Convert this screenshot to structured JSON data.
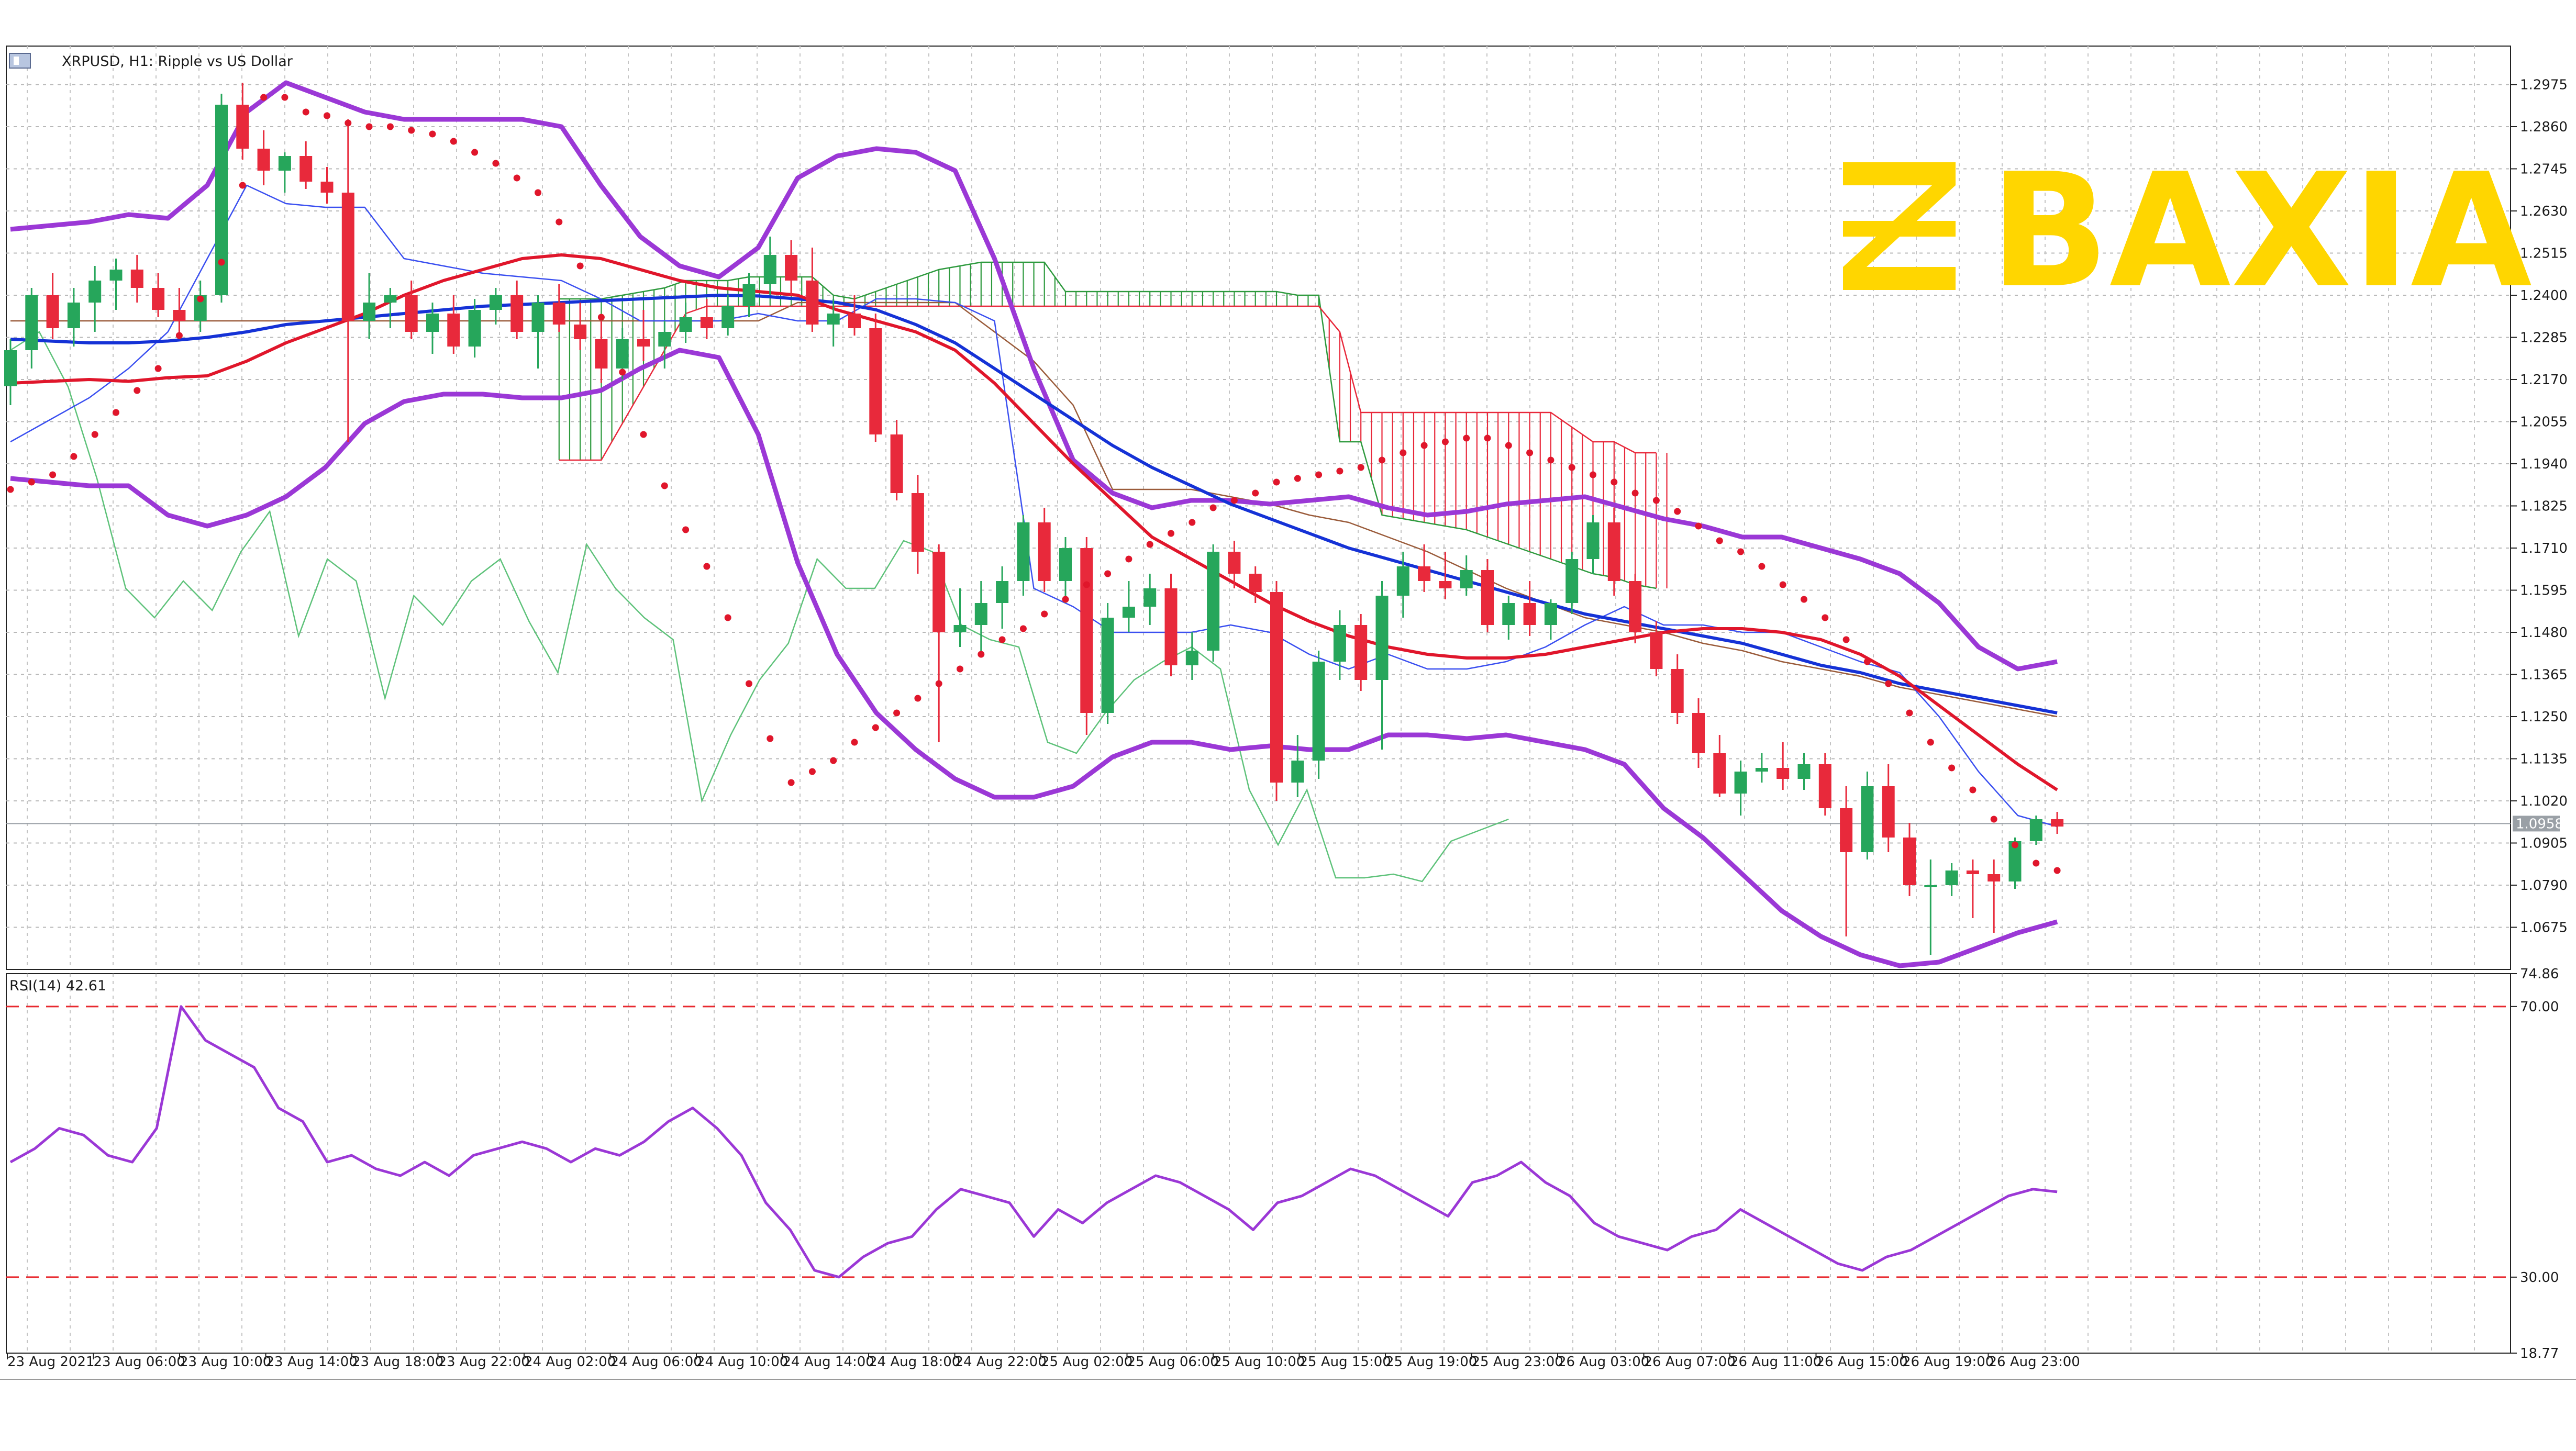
{
  "window": {
    "title": "XRPUSD, H1:  Ripple vs US Dollar"
  },
  "logo": {
    "text": "BAXIA",
    "color": "#ffd600"
  },
  "price_panel": {
    "y_ticks": [
      "1.2975",
      "1.2860",
      "1.2745",
      "1.2630",
      "1.2515",
      "1.2400",
      "1.2285",
      "1.2170",
      "1.2055",
      "1.1940",
      "1.1825",
      "1.1710",
      "1.1595",
      "1.1480",
      "1.1365",
      "1.1250",
      "1.1135",
      "1.1020",
      "1.0905",
      "1.0790",
      "1.0675"
    ],
    "ylim": [
      1.056,
      1.308
    ],
    "current_price": "1.0958"
  },
  "rsi_panel": {
    "title": "RSI(14) 42.61",
    "y_ticks": [
      "74.86",
      "70.00",
      "30.00",
      "18.77"
    ],
    "ylim": [
      18.77,
      74.86
    ],
    "levels": [
      70,
      30
    ],
    "level_color": "#e8292f"
  },
  "x_labels": [
    "23 Aug 2021",
    "23 Aug 06:00",
    "23 Aug 10:00",
    "23 Aug 14:00",
    "23 Aug 18:00",
    "23 Aug 22:00",
    "24 Aug 02:00",
    "24 Aug 06:00",
    "24 Aug 10:00",
    "24 Aug 14:00",
    "24 Aug 18:00",
    "24 Aug 22:00",
    "25 Aug 02:00",
    "25 Aug 06:00",
    "25 Aug 10:00",
    "25 Aug 15:00",
    "25 Aug 19:00",
    "25 Aug 23:00",
    "26 Aug 03:00",
    "26 Aug 07:00",
    "26 Aug 11:00",
    "26 Aug 15:00",
    "26 Aug 19:00",
    "26 Aug 23:00"
  ],
  "colors": {
    "bull": "#26a65b",
    "bear": "#e8293b",
    "bollinger": "#9b38d6",
    "ma_fast": "#e0162b",
    "ma_slow": "#1532d6",
    "sar": "#e0162b",
    "kijun": "#9a5b3a",
    "tenkan": "#3a4ff0",
    "chikou": "#5ec27a",
    "cloud_bear": "#e8293b",
    "cloud_bull": "#2e9a3e",
    "rsi": "#9b38d6"
  },
  "chart_data": {
    "type": "candlestick",
    "symbol": "XRPUSD",
    "timeframe": "H1",
    "candles": [
      [
        1.2152,
        1.228,
        1.21,
        1.225
      ],
      [
        1.225,
        1.242,
        1.22,
        1.24
      ],
      [
        1.24,
        1.246,
        1.228,
        1.231
      ],
      [
        1.231,
        1.242,
        1.226,
        1.238
      ],
      [
        1.238,
        1.248,
        1.23,
        1.244
      ],
      [
        1.244,
        1.25,
        1.236,
        1.247
      ],
      [
        1.247,
        1.251,
        1.238,
        1.242
      ],
      [
        1.242,
        1.246,
        1.234,
        1.236
      ],
      [
        1.236,
        1.242,
        1.228,
        1.233
      ],
      [
        1.233,
        1.244,
        1.23,
        1.24
      ],
      [
        1.24,
        1.295,
        1.238,
        1.292
      ],
      [
        1.292,
        1.298,
        1.277,
        1.28
      ],
      [
        1.28,
        1.285,
        1.27,
        1.274
      ],
      [
        1.274,
        1.279,
        1.268,
        1.278
      ],
      [
        1.278,
        1.282,
        1.269,
        1.271
      ],
      [
        1.271,
        1.275,
        1.265,
        1.268
      ],
      [
        1.268,
        1.288,
        1.2,
        1.233
      ],
      [
        1.233,
        1.246,
        1.228,
        1.238
      ],
      [
        1.238,
        1.242,
        1.231,
        1.24
      ],
      [
        1.24,
        1.244,
        1.228,
        1.23
      ],
      [
        1.23,
        1.238,
        1.224,
        1.235
      ],
      [
        1.235,
        1.24,
        1.224,
        1.226
      ],
      [
        1.226,
        1.239,
        1.223,
        1.236
      ],
      [
        1.236,
        1.242,
        1.232,
        1.24
      ],
      [
        1.24,
        1.244,
        1.228,
        1.23
      ],
      [
        1.23,
        1.24,
        1.22,
        1.238
      ],
      [
        1.238,
        1.243,
        1.23,
        1.232
      ],
      [
        1.232,
        1.238,
        1.225,
        1.228
      ],
      [
        1.228,
        1.233,
        1.216,
        1.22
      ],
      [
        1.22,
        1.231,
        1.217,
        1.228
      ],
      [
        1.228,
        1.236,
        1.222,
        1.226
      ],
      [
        1.226,
        1.233,
        1.22,
        1.23
      ],
      [
        1.23,
        1.238,
        1.227,
        1.234
      ],
      [
        1.234,
        1.239,
        1.228,
        1.231
      ],
      [
        1.231,
        1.24,
        1.229,
        1.237
      ],
      [
        1.237,
        1.246,
        1.234,
        1.243
      ],
      [
        1.243,
        1.256,
        1.24,
        1.251
      ],
      [
        1.251,
        1.255,
        1.24,
        1.244
      ],
      [
        1.244,
        1.253,
        1.23,
        1.232
      ],
      [
        1.232,
        1.239,
        1.226,
        1.235
      ],
      [
        1.235,
        1.24,
        1.229,
        1.231
      ],
      [
        1.231,
        1.235,
        1.2,
        1.202
      ],
      [
        1.202,
        1.206,
        1.184,
        1.186
      ],
      [
        1.186,
        1.191,
        1.164,
        1.17
      ],
      [
        1.17,
        1.172,
        1.118,
        1.148
      ],
      [
        1.148,
        1.16,
        1.144,
        1.15
      ],
      [
        1.15,
        1.162,
        1.142,
        1.156
      ],
      [
        1.156,
        1.166,
        1.149,
        1.162
      ],
      [
        1.162,
        1.18,
        1.158,
        1.178
      ],
      [
        1.178,
        1.182,
        1.159,
        1.162
      ],
      [
        1.162,
        1.174,
        1.156,
        1.171
      ],
      [
        1.171,
        1.174,
        1.12,
        1.126
      ],
      [
        1.126,
        1.156,
        1.123,
        1.152
      ],
      [
        1.152,
        1.162,
        1.148,
        1.155
      ],
      [
        1.155,
        1.164,
        1.15,
        1.16
      ],
      [
        1.16,
        1.164,
        1.136,
        1.139
      ],
      [
        1.139,
        1.148,
        1.135,
        1.143
      ],
      [
        1.143,
        1.172,
        1.14,
        1.17
      ],
      [
        1.17,
        1.173,
        1.16,
        1.164
      ],
      [
        1.164,
        1.166,
        1.156,
        1.159
      ],
      [
        1.159,
        1.162,
        1.102,
        1.107
      ],
      [
        1.107,
        1.12,
        1.103,
        1.113
      ],
      [
        1.113,
        1.143,
        1.108,
        1.14
      ],
      [
        1.14,
        1.154,
        1.135,
        1.15
      ],
      [
        1.15,
        1.153,
        1.132,
        1.135
      ],
      [
        1.135,
        1.162,
        1.116,
        1.158
      ],
      [
        1.158,
        1.17,
        1.152,
        1.166
      ],
      [
        1.166,
        1.172,
        1.159,
        1.162
      ],
      [
        1.162,
        1.17,
        1.157,
        1.16
      ],
      [
        1.16,
        1.169,
        1.158,
        1.165
      ],
      [
        1.165,
        1.168,
        1.148,
        1.15
      ],
      [
        1.15,
        1.158,
        1.146,
        1.156
      ],
      [
        1.156,
        1.162,
        1.147,
        1.15
      ],
      [
        1.15,
        1.157,
        1.146,
        1.156
      ],
      [
        1.156,
        1.17,
        1.153,
        1.168
      ],
      [
        1.168,
        1.18,
        1.164,
        1.178
      ],
      [
        1.178,
        1.182,
        1.158,
        1.162
      ],
      [
        1.162,
        1.164,
        1.145,
        1.148
      ],
      [
        1.148,
        1.151,
        1.136,
        1.138
      ],
      [
        1.138,
        1.142,
        1.123,
        1.126
      ],
      [
        1.126,
        1.13,
        1.111,
        1.115
      ],
      [
        1.115,
        1.12,
        1.103,
        1.104
      ],
      [
        1.104,
        1.113,
        1.098,
        1.11
      ],
      [
        1.11,
        1.115,
        1.107,
        1.111
      ],
      [
        1.111,
        1.118,
        1.105,
        1.108
      ],
      [
        1.108,
        1.115,
        1.105,
        1.112
      ],
      [
        1.112,
        1.115,
        1.098,
        1.1
      ],
      [
        1.1,
        1.106,
        1.065,
        1.088
      ],
      [
        1.088,
        1.11,
        1.086,
        1.106
      ],
      [
        1.106,
        1.112,
        1.088,
        1.092
      ],
      [
        1.092,
        1.096,
        1.076,
        1.079
      ],
      [
        1.079,
        1.086,
        1.06,
        1.079
      ],
      [
        1.079,
        1.085,
        1.076,
        1.083
      ],
      [
        1.083,
        1.086,
        1.07,
        1.082
      ],
      [
        1.082,
        1.086,
        1.066,
        1.08
      ],
      [
        1.08,
        1.092,
        1.078,
        1.091
      ],
      [
        1.091,
        1.098,
        1.09,
        1.097
      ],
      [
        1.097,
        1.099,
        1.093,
        1.095
      ]
    ],
    "ma_fast": [
      1.216,
      1.2165,
      1.217,
      1.2165,
      1.2175,
      1.218,
      1.222,
      1.227,
      1.231,
      1.235,
      1.24,
      1.244,
      1.247,
      1.25,
      1.251,
      1.25,
      1.247,
      1.244,
      1.242,
      1.241,
      1.24,
      1.236,
      1.233,
      1.23,
      1.225,
      1.216,
      1.205,
      1.194,
      1.184,
      1.174,
      1.168,
      1.162,
      1.156,
      1.151,
      1.147,
      1.144,
      1.142,
      1.141,
      1.141,
      1.142,
      1.144,
      1.146,
      1.148,
      1.149,
      1.149,
      1.148,
      1.146,
      1.142,
      1.136,
      1.128,
      1.12,
      1.112,
      1.105
    ],
    "ma_slow": [
      1.228,
      1.2275,
      1.227,
      1.227,
      1.2275,
      1.2285,
      1.23,
      1.232,
      1.233,
      1.234,
      1.235,
      1.236,
      1.237,
      1.2375,
      1.238,
      1.2385,
      1.239,
      1.2395,
      1.24,
      1.2398,
      1.239,
      1.238,
      1.236,
      1.232,
      1.227,
      1.22,
      1.213,
      1.206,
      1.199,
      1.193,
      1.188,
      1.183,
      1.179,
      1.175,
      1.171,
      1.168,
      1.165,
      1.162,
      1.159,
      1.156,
      1.153,
      1.151,
      1.149,
      1.147,
      1.145,
      1.142,
      1.139,
      1.137,
      1.134,
      1.132,
      1.13,
      1.128,
      1.126
    ],
    "bb_upper": [
      1.258,
      1.259,
      1.26,
      1.262,
      1.261,
      1.27,
      1.29,
      1.298,
      1.294,
      1.29,
      1.288,
      1.288,
      1.288,
      1.288,
      1.286,
      1.27,
      1.256,
      1.248,
      1.245,
      1.253,
      1.272,
      1.278,
      1.28,
      1.279,
      1.274,
      1.25,
      1.22,
      1.195,
      1.186,
      1.182,
      1.184,
      1.184,
      1.183,
      1.184,
      1.185,
      1.182,
      1.18,
      1.181,
      1.183,
      1.184,
      1.185,
      1.182,
      1.179,
      1.177,
      1.174,
      1.174,
      1.171,
      1.168,
      1.164,
      1.156,
      1.144,
      1.138,
      1.14
    ],
    "bb_lower": [
      1.19,
      1.189,
      1.188,
      1.188,
      1.18,
      1.177,
      1.18,
      1.185,
      1.193,
      1.205,
      1.211,
      1.213,
      1.213,
      1.212,
      1.212,
      1.214,
      1.22,
      1.225,
      1.223,
      1.202,
      1.167,
      1.142,
      1.126,
      1.116,
      1.108,
      1.103,
      1.103,
      1.106,
      1.114,
      1.118,
      1.118,
      1.116,
      1.117,
      1.116,
      1.116,
      1.12,
      1.12,
      1.119,
      1.12,
      1.118,
      1.116,
      1.112,
      1.1,
      1.092,
      1.082,
      1.072,
      1.065,
      1.06,
      1.057,
      1.058,
      1.062,
      1.066,
      1.069
    ],
    "sar": [
      1.187,
      1.189,
      1.191,
      1.196,
      1.202,
      1.208,
      1.214,
      1.22,
      1.229,
      1.239,
      1.249,
      1.27,
      1.294,
      1.294,
      1.29,
      1.289,
      1.287,
      1.286,
      1.286,
      1.285,
      1.284,
      1.282,
      1.279,
      1.276,
      1.272,
      1.268,
      1.26,
      1.248,
      1.234,
      1.219,
      1.202,
      1.188,
      1.176,
      1.166,
      1.152,
      1.134,
      1.119,
      1.107,
      1.11,
      1.113,
      1.118,
      1.122,
      1.126,
      1.13,
      1.134,
      1.138,
      1.142,
      1.146,
      1.149,
      1.153,
      1.157,
      1.161,
      1.164,
      1.168,
      1.172,
      1.175,
      1.178,
      1.182,
      1.184,
      1.186,
      1.189,
      1.19,
      1.191,
      1.192,
      1.193,
      1.195,
      1.197,
      1.199,
      1.2,
      1.201,
      1.201,
      1.199,
      1.197,
      1.195,
      1.193,
      1.191,
      1.189,
      1.186,
      1.184,
      1.181,
      1.177,
      1.173,
      1.17,
      1.166,
      1.161,
      1.157,
      1.152,
      1.146,
      1.14,
      1.134,
      1.126,
      1.118,
      1.111,
      1.105,
      1.097,
      1.09,
      1.085,
      1.083
    ],
    "senkou_a": [
      1.239,
      1.239,
      1.239,
      1.24,
      1.241,
      1.242,
      1.244,
      1.244,
      1.244,
      1.245,
      1.245,
      1.245,
      1.245,
      1.24,
      1.239,
      1.241,
      1.243,
      1.245,
      1.247,
      1.248,
      1.249,
      1.249,
      1.249,
      1.249,
      1.241,
      1.241,
      1.241,
      1.241,
      1.241,
      1.241,
      1.241,
      1.241,
      1.241,
      1.241,
      1.241,
      1.24,
      1.24,
      1.2,
      1.2,
      1.18,
      1.179,
      1.178,
      1.177,
      1.176,
      1.174,
      1.172,
      1.17,
      1.168,
      1.166,
      1.164,
      1.163,
      1.161,
      1.16
    ],
    "senkou_b": [
      1.195,
      1.195,
      1.195,
      1.205,
      1.215,
      1.225,
      1.235,
      1.237,
      1.237,
      1.237,
      1.237,
      1.237,
      1.237,
      1.237,
      1.237,
      1.237,
      1.237,
      1.237,
      1.237,
      1.237,
      1.237,
      1.237,
      1.237,
      1.237,
      1.237,
      1.237,
      1.237,
      1.237,
      1.237,
      1.237,
      1.237,
      1.237,
      1.237,
      1.237,
      1.237,
      1.237,
      1.237,
      1.23,
      1.208,
      1.208,
      1.208,
      1.208,
      1.208,
      1.208,
      1.208,
      1.208,
      1.208,
      1.208,
      1.204,
      1.2,
      1.2,
      1.197,
      1.197
    ],
    "tenkan": [
      1.2,
      1.206,
      1.212,
      1.22,
      1.23,
      1.25,
      1.27,
      1.265,
      1.264,
      1.264,
      1.25,
      1.248,
      1.246,
      1.245,
      1.244,
      1.239,
      1.233,
      1.233,
      1.233,
      1.235,
      1.233,
      1.233,
      1.239,
      1.239,
      1.238,
      1.233,
      1.16,
      1.155,
      1.148,
      1.148,
      1.148,
      1.15,
      1.148,
      1.142,
      1.138,
      1.142,
      1.138,
      1.138,
      1.14,
      1.144,
      1.15,
      1.155,
      1.15,
      1.15,
      1.148,
      1.148,
      1.144,
      1.14,
      1.137,
      1.125,
      1.11,
      1.098,
      1.095
    ],
    "kijun": [
      1.233,
      1.233,
      1.233,
      1.233,
      1.233,
      1.233,
      1.233,
      1.233,
      1.233,
      1.233,
      1.233,
      1.233,
      1.233,
      1.233,
      1.233,
      1.233,
      1.233,
      1.233,
      1.233,
      1.233,
      1.238,
      1.238,
      1.238,
      1.238,
      1.238,
      1.23,
      1.222,
      1.21,
      1.187,
      1.187,
      1.187,
      1.185,
      1.183,
      1.18,
      1.178,
      1.174,
      1.17,
      1.165,
      1.16,
      1.156,
      1.152,
      1.15,
      1.148,
      1.145,
      1.143,
      1.14,
      1.138,
      1.136,
      1.133,
      1.131,
      1.129,
      1.127,
      1.125
    ],
    "chikou": [
      1.225,
      1.23,
      1.215,
      1.19,
      1.16,
      1.152,
      1.162,
      1.154,
      1.17,
      1.181,
      1.147,
      1.168,
      1.162,
      1.13,
      1.158,
      1.15,
      1.162,
      1.168,
      1.151,
      1.137,
      1.172,
      1.16,
      1.152,
      1.146,
      1.102,
      1.12,
      1.135,
      1.145,
      1.168,
      1.16,
      1.16,
      1.173,
      1.17,
      1.15,
      1.146,
      1.144,
      1.118,
      1.115,
      1.126,
      1.135,
      1.14,
      1.144,
      1.138,
      1.105,
      1.09,
      1.105,
      1.081,
      1.081,
      1.082,
      1.08,
      1.091,
      1.094,
      1.097
    ],
    "rsi": [
      47,
      49,
      52,
      51,
      48,
      47,
      52,
      70,
      65,
      63,
      61,
      55,
      53,
      47,
      48,
      46,
      45,
      47,
      45,
      48,
      49,
      50,
      49,
      47,
      49,
      48,
      50,
      53,
      55,
      52,
      48,
      41,
      37,
      31,
      30,
      33,
      35,
      36,
      40,
      43,
      42,
      41,
      36,
      40,
      38,
      41,
      43,
      45,
      44,
      42,
      40,
      37,
      41,
      42,
      44,
      46,
      45,
      43,
      41,
      39,
      44,
      45,
      47,
      44,
      42,
      38,
      36,
      35,
      34,
      36,
      37,
      40,
      38,
      36,
      34,
      32,
      31,
      33,
      34,
      36,
      38,
      40,
      42,
      43,
      42.61
    ]
  }
}
